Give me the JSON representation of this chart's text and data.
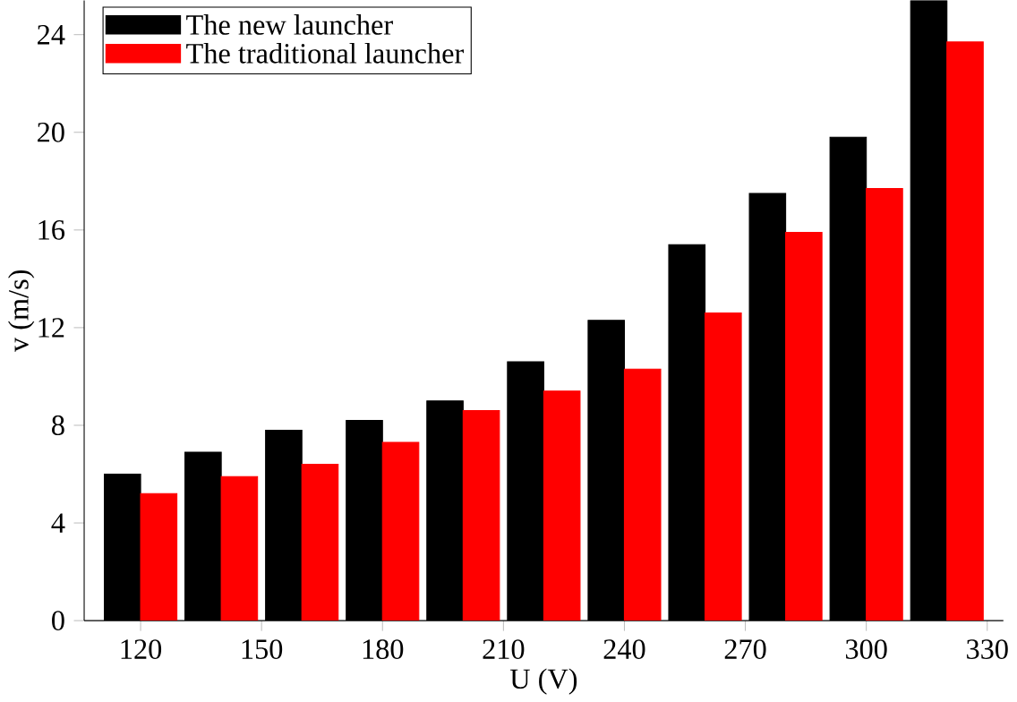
{
  "chart_data": {
    "type": "bar",
    "xlabel": "U (V)",
    "ylabel": "v (m/s)",
    "x": [
      120,
      140,
      160,
      180,
      200,
      220,
      240,
      260,
      280,
      300,
      320
    ],
    "series": [
      {
        "name": "The new launcher",
        "color": "#000000",
        "values": [
          6.0,
          6.9,
          7.8,
          8.2,
          9.0,
          10.6,
          12.3,
          15.4,
          17.5,
          19.8,
          25.4
        ]
      },
      {
        "name": "The traditional launcher",
        "color": "#ff0000",
        "values": [
          5.2,
          5.9,
          6.4,
          7.3,
          8.6,
          9.4,
          10.3,
          12.6,
          15.9,
          17.7,
          23.7
        ]
      }
    ],
    "xlim": [
      106,
      334
    ],
    "ylim": [
      0,
      25.4
    ],
    "xticks": [
      120,
      150,
      180,
      210,
      240,
      270,
      300,
      330
    ],
    "yticks": [
      0,
      4,
      8,
      12,
      16,
      20,
      24
    ],
    "legend": "top left",
    "grid": false
  }
}
